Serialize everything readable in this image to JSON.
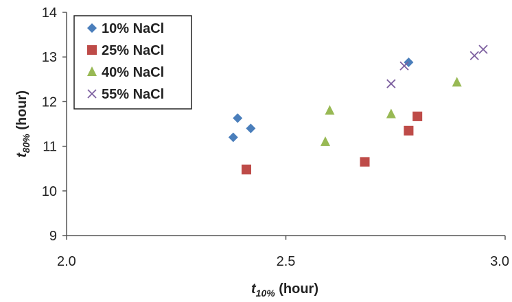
{
  "chart_data": {
    "type": "scatter",
    "xlabel_main": "t",
    "xlabel_sub": "10%",
    "xlabel_unit": " (hour)",
    "ylabel_main": "t",
    "ylabel_sub": "80%",
    "ylabel_unit": " (hour)",
    "xlim": [
      2.0,
      3.0
    ],
    "ylim": [
      9,
      14
    ],
    "xticks": [
      "2.0",
      "2.5",
      "3.0"
    ],
    "xtick_values": [
      2.0,
      2.5,
      3.0
    ],
    "yticks": [
      "9",
      "10",
      "11",
      "12",
      "13",
      "14"
    ],
    "ytick_values": [
      9,
      10,
      11,
      12,
      13,
      14
    ],
    "grid": false,
    "legend_position": "top-left",
    "series": [
      {
        "name": "10% NaCl",
        "marker": "diamond",
        "color": "#4a7ebb",
        "points": [
          [
            2.38,
            11.2
          ],
          [
            2.39,
            11.63
          ],
          [
            2.42,
            11.4
          ],
          [
            2.78,
            12.88
          ]
        ]
      },
      {
        "name": "25% NaCl",
        "marker": "square",
        "color": "#be4b48",
        "points": [
          [
            2.41,
            10.48
          ],
          [
            2.68,
            10.65
          ],
          [
            2.78,
            11.35
          ],
          [
            2.8,
            11.67
          ]
        ]
      },
      {
        "name": "40% NaCl",
        "marker": "triangle",
        "color": "#98b954",
        "points": [
          [
            2.59,
            11.1
          ],
          [
            2.6,
            11.8
          ],
          [
            2.74,
            11.72
          ],
          [
            2.89,
            12.43
          ]
        ]
      },
      {
        "name": "55% NaCl",
        "marker": "x",
        "color": "#7d60a0",
        "points": [
          [
            2.74,
            12.4
          ],
          [
            2.77,
            12.8
          ],
          [
            2.93,
            13.03
          ],
          [
            2.95,
            13.17
          ]
        ]
      }
    ]
  }
}
